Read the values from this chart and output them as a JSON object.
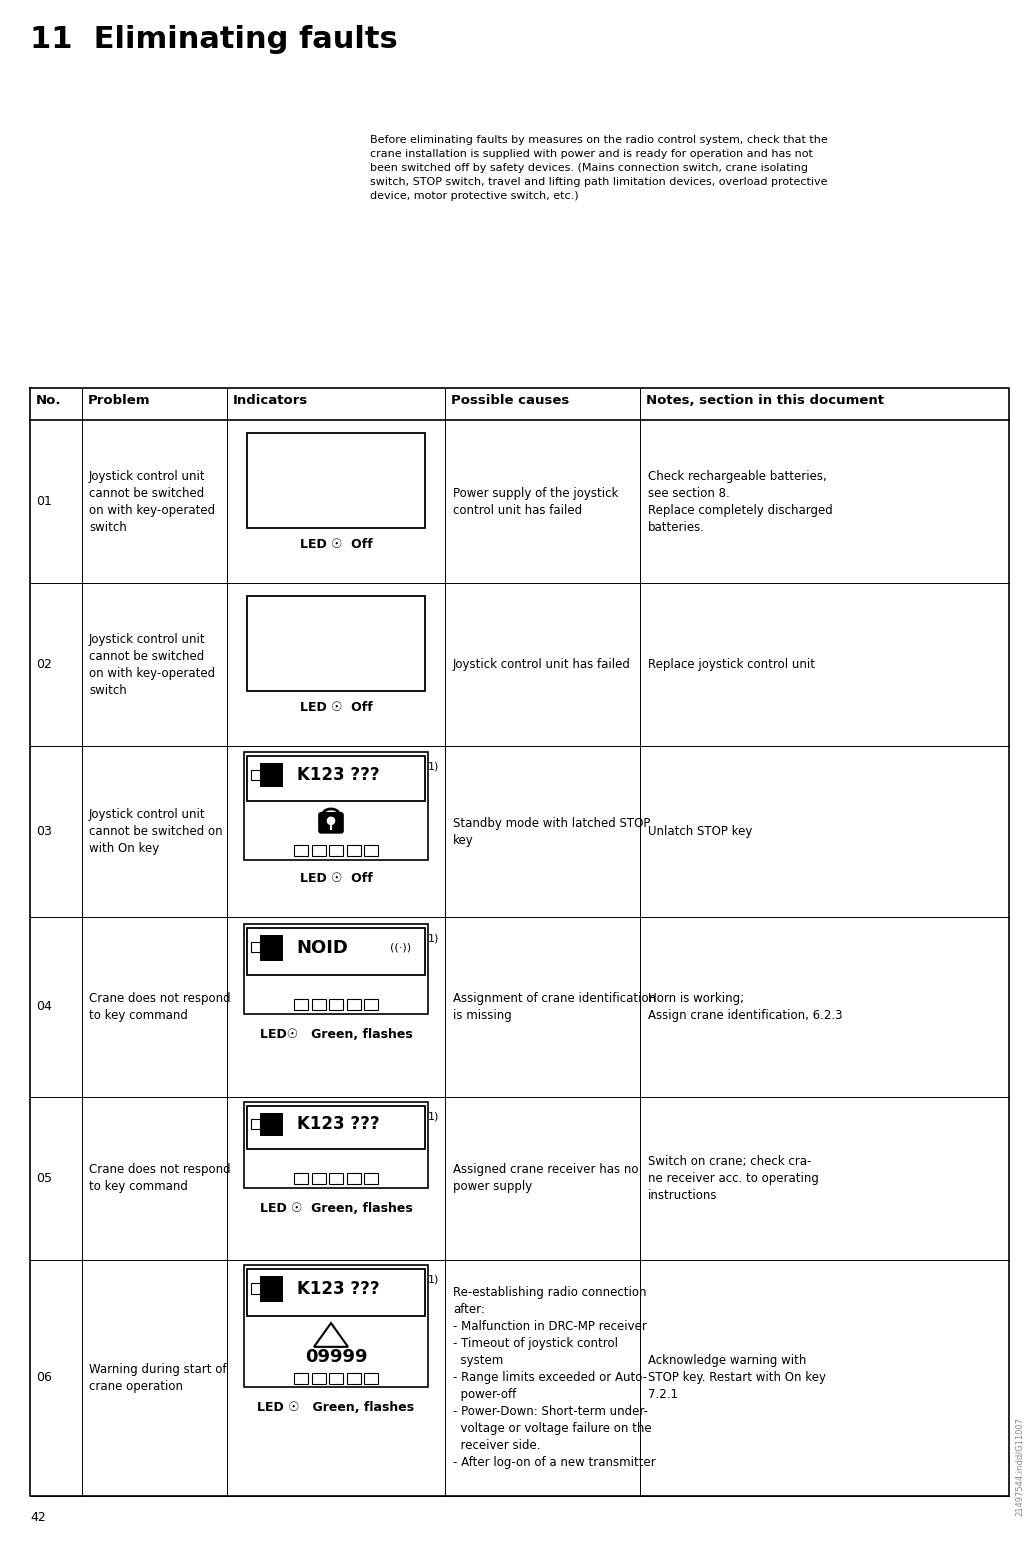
{
  "title": "11  Eliminating faults",
  "page_num": "42",
  "watermark": "21497544.indd/G11007",
  "intro_text": "Before eliminating faults by measures on the radio control system, check that the\ncrane installation is supplied with power and is ready for operation and has not\nbeen switched off by safety devices. (Mains connection switch, crane isolating\nswitch, STOP switch, travel and lifting path limitation devices, overload protective\ndevice, motor protective switch, etc.)",
  "col_headers": [
    "No.",
    "Problem",
    "Indicators",
    "Possible causes",
    "Notes, section in this document"
  ],
  "rows": [
    {
      "no": "01",
      "problem": "Joystick control unit\ncannot be switched\non with key-operated\nswitch",
      "indicator_type": "blank_box",
      "led_text": "LED ☉  Off",
      "led_bold": true,
      "causes": "Power supply of the joystick\ncontrol unit has failed",
      "notes": "Check rechargeable batteries,\nsee section 8.\nReplace completely discharged\nbatteries."
    },
    {
      "no": "02",
      "problem": "Joystick control unit\ncannot be switched\non with key-operated\nswitch",
      "indicator_type": "blank_box",
      "led_text": "LED ☉  Off",
      "led_bold": true,
      "causes": "Joystick control unit has failed",
      "notes": "Replace joystick control unit"
    },
    {
      "no": "03",
      "problem": "Joystick control unit\ncannot be switched on\nwith On key",
      "indicator_type": "k123_padlock",
      "led_text": "LED ☉  Off",
      "led_bold": true,
      "causes": "Standby mode with latched STOP\nkey",
      "notes": "Unlatch STOP key"
    },
    {
      "no": "04",
      "problem": "Crane does not respond\nto key command",
      "indicator_type": "noid_box",
      "led_text": "LED☉   Green, flashes",
      "led_bold": true,
      "causes": "Assignment of crane identification\nis missing",
      "notes": "Horn is working;\nAssign crane identification, 6.2.3"
    },
    {
      "no": "05",
      "problem": "Crane does not respond\nto key command",
      "indicator_type": "k123_box",
      "led_text": "LED ☉  Green, flashes",
      "led_bold": true,
      "causes": "Assigned crane receiver has no\npower supply",
      "notes": "Switch on crane; check cra-\nne receiver acc. to operating\ninstructions"
    },
    {
      "no": "06",
      "problem": "Warning during start of\ncrane operation",
      "indicator_type": "k123_triangle_09999",
      "led_text": "LED ☉   Green, flashes",
      "led_bold": true,
      "causes": "Re-establishing radio connection\nafter:\n- Malfunction in DRC-MP receiver\n- Timeout of joystick control\n  system\n- Range limits exceeded or Auto-\n  power-off\n- Power-Down: Short-term under-\n  voltage or voltage failure on the\n  receiver side.\n- After log-on of a new transmitter",
      "notes": "Acknowledge warning with\nSTOP key. Restart with On key\n7.2.1"
    }
  ],
  "bg_color": "#ffffff",
  "text_color": "#000000"
}
